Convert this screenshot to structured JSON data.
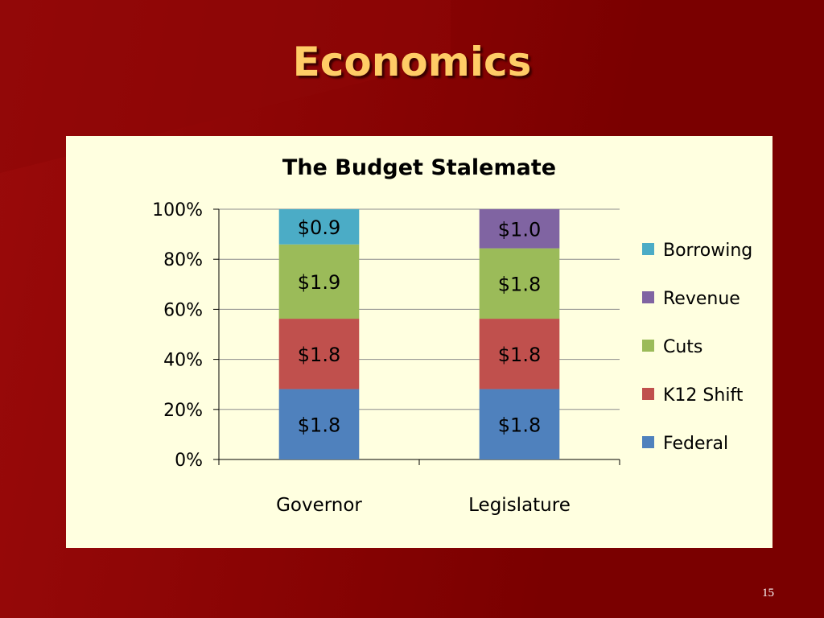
{
  "slide": {
    "title": "Economics",
    "page_number": "15"
  },
  "colors": {
    "Federal": "#4f81bd",
    "K12 Shift": "#c0504d",
    "Cuts": "#9bbb59",
    "Revenue": "#8064a2",
    "Borrowing": "#4bacc6"
  },
  "chart_data": {
    "type": "bar",
    "stacked": "percent",
    "title": "The Budget Stalemate",
    "xlabel": "",
    "ylabel": "",
    "categories": [
      "Governor",
      "Legislature"
    ],
    "ylim": [
      0,
      100
    ],
    "yticks": [
      "0%",
      "20%",
      "40%",
      "60%",
      "80%",
      "100%"
    ],
    "grid": true,
    "legend_position": "right",
    "legend_order": [
      "Borrowing",
      "Revenue",
      "Cuts",
      "K12 Shift",
      "Federal"
    ],
    "series": [
      {
        "name": "Federal",
        "values": [
          1.8,
          1.8
        ],
        "labels": [
          "$1.8",
          "$1.8"
        ]
      },
      {
        "name": "K12 Shift",
        "values": [
          1.8,
          1.8
        ],
        "labels": [
          "$1.8",
          "$1.8"
        ]
      },
      {
        "name": "Cuts",
        "values": [
          1.9,
          1.8
        ],
        "labels": [
          "$1.9",
          "$1.8"
        ]
      },
      {
        "name": "Revenue",
        "values": [
          0,
          1.0
        ],
        "labels": [
          "",
          "$1.0"
        ]
      },
      {
        "name": "Borrowing",
        "values": [
          0.9,
          0
        ],
        "labels": [
          "$0.9",
          ""
        ]
      }
    ]
  }
}
